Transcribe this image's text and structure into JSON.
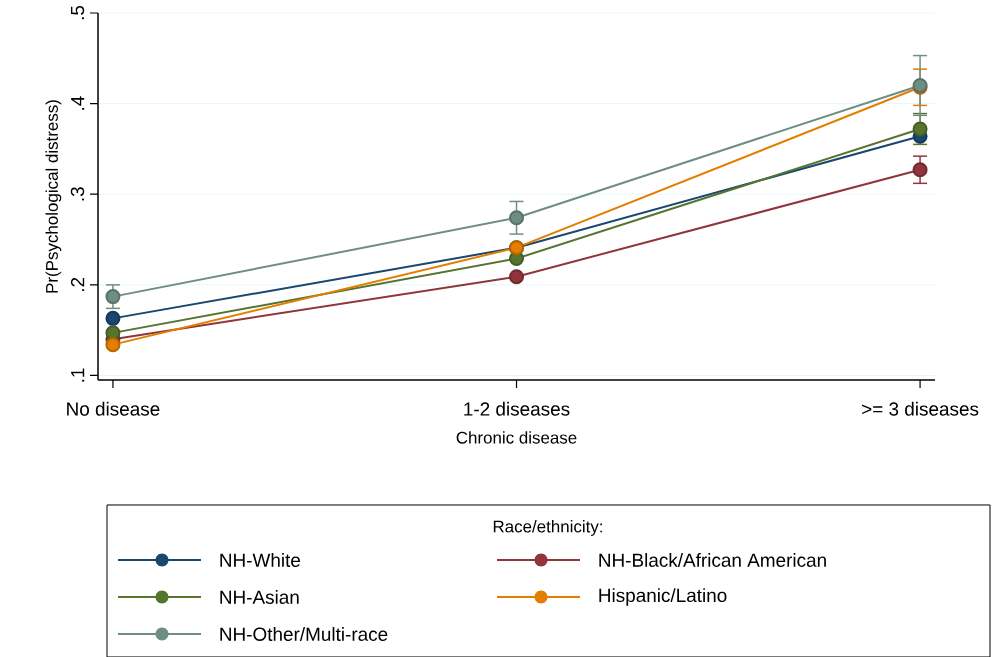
{
  "chart_data": {
    "type": "line",
    "xlabel": "Chronic disease",
    "ylabel": "Pr(Psychological distress)",
    "legend_title": "Race/ethnicity:",
    "categories": [
      "No disease",
      "1-2 diseases",
      ">= 3 diseases"
    ],
    "series": [
      {
        "name": "NH-White",
        "color": "#1a476f",
        "values": [
          0.163,
          0.241,
          0.364
        ]
      },
      {
        "name": "NH-Black/African American",
        "color": "#90353b",
        "values": [
          0.14,
          0.209,
          0.327
        ],
        "errors": [
          null,
          null,
          0.015
        ]
      },
      {
        "name": "NH-Asian",
        "color": "#55752f",
        "values": [
          0.147,
          0.229,
          0.372
        ],
        "errors": [
          null,
          null,
          0.017
        ]
      },
      {
        "name": "Hispanic/Latino",
        "color": "#e37e00",
        "values": [
          0.134,
          0.241,
          0.418
        ],
        "errors": [
          null,
          null,
          0.02
        ]
      },
      {
        "name": "NH-Other/Multi-race",
        "color": "#6e8e84",
        "values": [
          0.187,
          0.274,
          0.42
        ],
        "errors": [
          0.013,
          0.018,
          0.033
        ]
      }
    ],
    "ylim": [
      0.095,
      0.5
    ],
    "yticks": [
      {
        "value": 0.1,
        "label": ".1"
      },
      {
        "value": 0.2,
        "label": ".2"
      },
      {
        "value": 0.3,
        "label": ".3"
      },
      {
        "value": 0.4,
        "label": ".4"
      },
      {
        "value": 0.5,
        "label": ".5"
      }
    ],
    "grid": "y",
    "legend": "bottom",
    "marker": "circle",
    "line_style": "solid"
  }
}
